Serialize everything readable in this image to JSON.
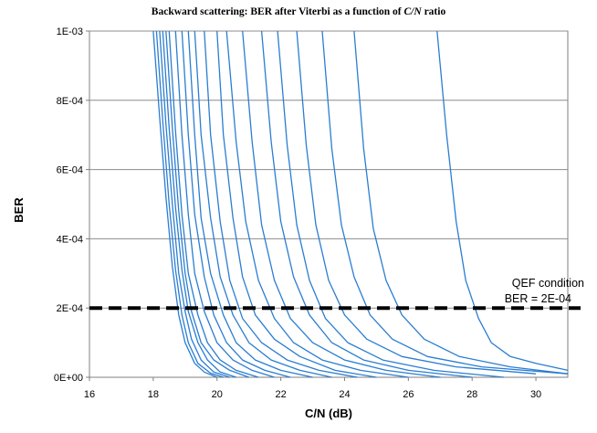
{
  "chart_data": {
    "type": "line",
    "title": "Backward scattering: BER after Viterbi as a function of C/N ratio",
    "title_prefix": "Backward scattering: BER after Viterbi as a function of ",
    "title_italic": "C/N",
    "title_suffix": " ratio",
    "xlabel": "C/N (dB)",
    "ylabel": "BER",
    "xlim": [
      16,
      31
    ],
    "ylim": [
      0,
      0.001
    ],
    "x_ticks": [
      16,
      18,
      20,
      22,
      24,
      26,
      28,
      30
    ],
    "x_tick_labels": [
      "16",
      "18",
      "20",
      "22",
      "24",
      "26",
      "28",
      "30"
    ],
    "y_ticks": [
      0,
      0.0002,
      0.0004,
      0.0006,
      0.0008,
      0.001
    ],
    "y_tick_labels": [
      "0E+00",
      "2E-04",
      "4E-04",
      "6E-04",
      "8E-04",
      "1E-03"
    ],
    "grid": "horizontal",
    "line_color": "#2a7dd1",
    "threshold_color": "#000000",
    "threshold": {
      "value": 0.0002,
      "style": "dashed",
      "label_line1": "QEF condition",
      "label_line2": "BER = 2E-04"
    },
    "series_note": "Dense family of BER curves (one per measurement), bulk crossing threshold near 18.5–20 dB, stragglers up to ~28.5 dB",
    "series": [
      {
        "x": [
          18.0,
          18.2,
          18.4,
          18.6,
          18.8,
          19.0,
          19.3,
          19.6,
          20.0
        ],
        "y": [
          0.001,
          0.00075,
          0.00052,
          0.00032,
          0.00018,
          0.0001,
          4e-05,
          1.5e-05,
          0.0
        ]
      },
      {
        "x": [
          18.1,
          18.3,
          18.5,
          18.7,
          18.9,
          19.1,
          19.4,
          19.8,
          20.2
        ],
        "y": [
          0.001,
          0.00074,
          0.0005,
          0.00031,
          0.00018,
          0.0001,
          4e-05,
          1.2e-05,
          0.0
        ]
      },
      {
        "x": [
          18.2,
          18.4,
          18.6,
          18.8,
          19.0,
          19.2,
          19.5,
          19.9,
          20.4
        ],
        "y": [
          0.001,
          0.00073,
          0.0005,
          0.0003,
          0.00019,
          0.00011,
          5e-05,
          1.5e-05,
          0.0
        ]
      },
      {
        "x": [
          18.3,
          18.5,
          18.7,
          18.9,
          19.1,
          19.4,
          19.7,
          20.1,
          20.6
        ],
        "y": [
          0.001,
          0.00072,
          0.00049,
          0.00031,
          0.00019,
          0.0001,
          5e-05,
          1.5e-05,
          0.0
        ]
      },
      {
        "x": [
          18.4,
          18.6,
          18.8,
          19.0,
          19.2,
          19.5,
          19.9,
          20.4,
          21.0
        ],
        "y": [
          0.001,
          0.00072,
          0.00048,
          0.0003,
          0.00019,
          0.0001,
          5e-05,
          2e-05,
          0.0
        ]
      },
      {
        "x": [
          18.5,
          18.7,
          18.9,
          19.1,
          19.4,
          19.7,
          20.1,
          20.6,
          21.3
        ],
        "y": [
          0.001,
          0.00071,
          0.00047,
          0.0003,
          0.00018,
          0.0001,
          5e-05,
          2e-05,
          0.0
        ]
      },
      {
        "x": [
          18.7,
          18.9,
          19.1,
          19.3,
          19.6,
          20.0,
          20.5,
          21.1,
          21.8
        ],
        "y": [
          0.001,
          0.0007,
          0.00047,
          0.0003,
          0.00019,
          0.0001,
          5e-05,
          2e-05,
          0.0
        ]
      },
      {
        "x": [
          18.9,
          19.1,
          19.3,
          19.6,
          19.9,
          20.3,
          20.8,
          21.5,
          22.3
        ],
        "y": [
          0.001,
          0.0007,
          0.00047,
          0.00029,
          0.00018,
          0.0001,
          5e-05,
          2e-05,
          0.0
        ]
      },
      {
        "x": [
          19.1,
          19.3,
          19.5,
          19.8,
          20.2,
          20.6,
          21.2,
          22.0,
          23.0
        ],
        "y": [
          0.001,
          0.0007,
          0.00046,
          0.0003,
          0.00018,
          0.0001,
          5e-05,
          2e-05,
          0.0
        ]
      },
      {
        "x": [
          19.3,
          19.5,
          19.8,
          20.1,
          20.5,
          21.0,
          21.7,
          22.6,
          23.6
        ],
        "y": [
          0.001,
          0.0007,
          0.00046,
          0.00029,
          0.00018,
          0.0001,
          5e-05,
          2e-05,
          0.0
        ]
      },
      {
        "x": [
          19.6,
          19.8,
          20.1,
          20.4,
          20.8,
          21.4,
          22.2,
          23.2,
          24.4
        ],
        "y": [
          0.001,
          0.0007,
          0.00045,
          0.00028,
          0.00017,
          0.0001,
          5e-05,
          2e-05,
          0.0
        ]
      },
      {
        "x": [
          20.0,
          20.2,
          20.5,
          20.8,
          21.2,
          21.8,
          22.6,
          23.7,
          25.0
        ],
        "y": [
          0.001,
          0.0007,
          0.00046,
          0.00029,
          0.00018,
          0.00011,
          6e-05,
          2e-05,
          0.0
        ]
      },
      {
        "x": [
          20.3,
          20.6,
          20.9,
          21.3,
          21.8,
          22.4,
          23.3,
          24.5,
          26.0
        ],
        "y": [
          0.001,
          0.00068,
          0.00045,
          0.00028,
          0.00017,
          0.0001,
          5e-05,
          2e-05,
          0.0
        ]
      },
      {
        "x": [
          20.8,
          21.1,
          21.4,
          21.8,
          22.3,
          23.0,
          24.0,
          25.3,
          27.0
        ],
        "y": [
          0.001,
          0.00068,
          0.00044,
          0.00028,
          0.00017,
          0.0001,
          5e-05,
          2e-05,
          0.0
        ]
      },
      {
        "x": [
          21.4,
          21.7,
          22.0,
          22.4,
          22.9,
          23.6,
          24.6,
          26.0,
          28.0
        ],
        "y": [
          0.001,
          0.00068,
          0.00045,
          0.00029,
          0.00018,
          0.0001,
          5e-05,
          2e-05,
          0.0
        ]
      },
      {
        "x": [
          21.9,
          22.2,
          22.5,
          22.9,
          23.4,
          24.1,
          25.2,
          26.8,
          29.0
        ],
        "y": [
          0.001,
          0.00067,
          0.00044,
          0.00028,
          0.00017,
          0.0001,
          5e-05,
          2e-05,
          0.0
        ]
      },
      {
        "x": [
          22.5,
          22.8,
          23.1,
          23.5,
          24.0,
          24.7,
          25.8,
          27.5,
          30.0
        ],
        "y": [
          0.001,
          0.00067,
          0.00044,
          0.00028,
          0.00018,
          0.00011,
          6e-05,
          3e-05,
          1e-05
        ]
      },
      {
        "x": [
          23.3,
          23.6,
          23.9,
          24.3,
          24.8,
          25.5,
          26.6,
          28.3,
          31.0
        ],
        "y": [
          0.001,
          0.00066,
          0.00044,
          0.00029,
          0.00018,
          0.00011,
          6e-05,
          3e-05,
          1e-05
        ]
      },
      {
        "x": [
          24.3,
          24.6,
          24.9,
          25.3,
          25.8,
          26.5,
          27.6,
          29.2,
          31.0
        ],
        "y": [
          0.001,
          0.00066,
          0.00043,
          0.00028,
          0.00018,
          0.00011,
          6e-05,
          3e-05,
          1e-05
        ]
      },
      {
        "x": [
          26.9,
          27.2,
          27.5,
          27.8,
          28.2,
          28.6,
          29.2,
          30.0,
          31.0
        ],
        "y": [
          0.001,
          0.0007,
          0.00045,
          0.00028,
          0.00017,
          0.0001,
          6e-05,
          4e-05,
          2e-05
        ]
      }
    ]
  }
}
